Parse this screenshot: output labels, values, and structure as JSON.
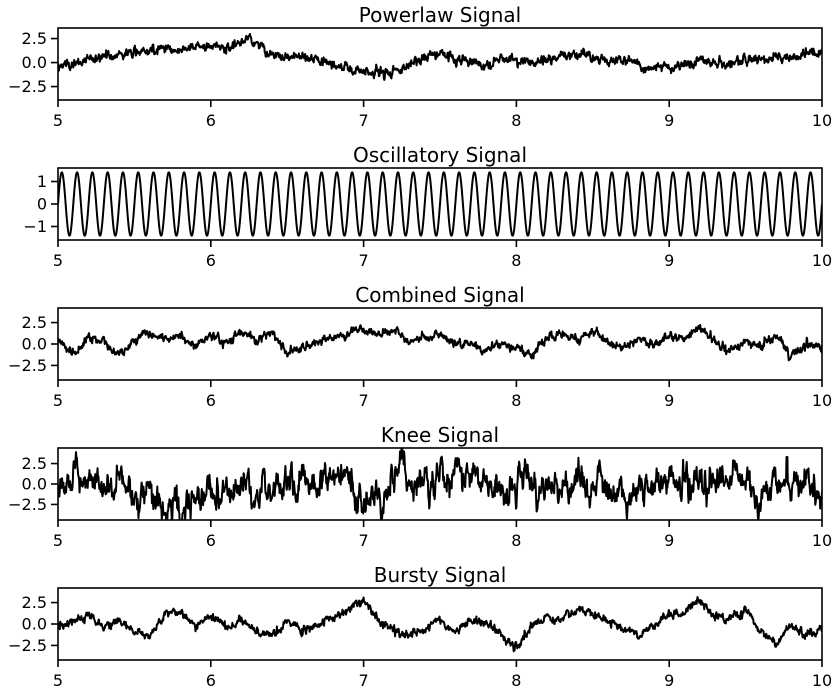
{
  "chart_data": [
    {
      "type": "line",
      "title": "Powerlaw Signal",
      "xlim": [
        5,
        10
      ],
      "ylim": [
        -3.9,
        3.6
      ],
      "x_ticks": [
        5,
        6,
        7,
        8,
        9,
        10
      ],
      "x_tick_labels": [
        "5",
        "6",
        "7",
        "8",
        "9",
        "10"
      ],
      "y_ticks": [
        2.5,
        0.0,
        -2.5
      ],
      "y_tick_labels": [
        "2.5",
        "0.0",
        "−2.5"
      ],
      "series_color": "#000000",
      "series": [
        {
          "x": [
            5.0,
            5.1,
            5.2,
            5.3,
            5.4,
            5.5,
            5.6,
            5.7,
            5.8,
            5.9,
            6.0,
            6.1,
            6.2,
            6.25,
            6.3,
            6.4,
            6.5,
            6.6,
            6.7,
            6.8,
            6.9,
            7.0,
            7.1,
            7.2,
            7.3,
            7.4,
            7.5,
            7.6,
            7.7,
            7.8,
            7.9,
            8.0,
            8.1,
            8.2,
            8.3,
            8.4,
            8.5,
            8.6,
            8.7,
            8.8,
            8.9,
            9.0,
            9.1,
            9.2,
            9.3,
            9.4,
            9.5,
            9.6,
            9.7,
            9.8,
            9.9,
            10.0
          ],
          "y": [
            -0.4,
            -0.2,
            0.3,
            0.6,
            0.9,
            1.0,
            1.4,
            1.6,
            1.2,
            1.8,
            1.7,
            1.5,
            2.2,
            2.7,
            2.0,
            0.8,
            0.6,
            0.5,
            0.2,
            -0.2,
            -0.7,
            -0.9,
            -1.1,
            -0.8,
            -0.3,
            0.6,
            0.9,
            0.5,
            0.2,
            -0.3,
            0.4,
            0.3,
            -0.1,
            0.1,
            0.7,
            0.9,
            0.6,
            0.2,
            0.3,
            -0.2,
            -0.6,
            -0.5,
            -0.3,
            0.1,
            -0.1,
            0.0,
            0.3,
            0.5,
            0.6,
            0.4,
            0.8,
            1.0
          ]
        }
      ]
    },
    {
      "type": "line",
      "title": "Oscillatory Signal",
      "xlim": [
        5,
        10
      ],
      "ylim": [
        -1.6,
        1.6
      ],
      "x_ticks": [
        5,
        6,
        7,
        8,
        9,
        10
      ],
      "x_tick_labels": [
        "5",
        "6",
        "7",
        "8",
        "9",
        "10"
      ],
      "y_ticks": [
        1,
        0,
        -1
      ],
      "y_tick_labels": [
        "1",
        "0",
        "−1"
      ],
      "series_color": "#000000",
      "series": [
        {
          "function": "sine",
          "amplitude": 1.41,
          "frequency_hz": 10,
          "x_range": [
            5,
            10
          ]
        }
      ]
    },
    {
      "type": "line",
      "title": "Combined Signal",
      "xlim": [
        5,
        10
      ],
      "ylim": [
        -4.2,
        4.2
      ],
      "x_ticks": [
        5,
        6,
        7,
        8,
        9,
        10
      ],
      "x_tick_labels": [
        "5",
        "6",
        "7",
        "8",
        "9",
        "10"
      ],
      "y_ticks": [
        2.5,
        0.0,
        -2.5
      ],
      "y_tick_labels": [
        "2.5",
        "0.0",
        "−2.5"
      ],
      "series_color": "#000000",
      "series": [
        {
          "x": [
            5.0,
            5.1,
            5.2,
            5.3,
            5.4,
            5.5,
            5.6,
            5.7,
            5.8,
            5.9,
            6.0,
            6.1,
            6.2,
            6.3,
            6.4,
            6.5,
            6.6,
            6.7,
            6.8,
            6.9,
            7.0,
            7.1,
            7.2,
            7.3,
            7.4,
            7.5,
            7.6,
            7.7,
            7.8,
            7.9,
            8.0,
            8.1,
            8.2,
            8.3,
            8.4,
            8.5,
            8.6,
            8.7,
            8.8,
            8.9,
            9.0,
            9.1,
            9.2,
            9.3,
            9.4,
            9.5,
            9.6,
            9.7,
            9.8,
            9.9,
            10.0
          ],
          "y": [
            0.6,
            -1.2,
            0.8,
            0.3,
            -1.5,
            0.4,
            1.2,
            0.5,
            1.0,
            -0.3,
            1.1,
            0.2,
            1.3,
            0.4,
            1.5,
            -1.0,
            -0.6,
            0.3,
            0.6,
            1.4,
            1.8,
            0.9,
            1.6,
            0.2,
            0.8,
            1.2,
            -0.4,
            0.1,
            -0.8,
            0.2,
            -0.5,
            -1.4,
            0.6,
            1.2,
            0.4,
            1.5,
            0.3,
            -0.5,
            0.8,
            -0.2,
            1.0,
            0.5,
            2.2,
            0.1,
            -0.8,
            0.4,
            -0.2,
            1.0,
            -1.6,
            0.2,
            -0.4
          ]
        }
      ]
    },
    {
      "type": "line",
      "title": "Knee Signal",
      "xlim": [
        5,
        10
      ],
      "ylim": [
        -4.4,
        4.4
      ],
      "x_ticks": [
        5,
        6,
        7,
        8,
        9,
        10
      ],
      "x_tick_labels": [
        "5",
        "6",
        "7",
        "8",
        "9",
        "10"
      ],
      "y_ticks": [
        2.5,
        0.0,
        -2.5
      ],
      "y_tick_labels": [
        "2.5",
        "0.0",
        "−2.5"
      ],
      "series_color": "#000000",
      "series": [
        {
          "noise": "knee",
          "std": 1.2,
          "peak": 3.3,
          "x_range": [
            5,
            10
          ]
        }
      ]
    },
    {
      "type": "line",
      "title": "Bursty Signal",
      "xlim": [
        5,
        10
      ],
      "ylim": [
        -4.2,
        4.2
      ],
      "x_ticks": [
        5,
        6,
        7,
        8,
        9,
        10
      ],
      "x_tick_labels": [
        "5",
        "6",
        "7",
        "8",
        "9",
        "10"
      ],
      "y_ticks": [
        2.5,
        0.0,
        -2.5
      ],
      "y_tick_labels": [
        "2.5",
        "0.0",
        "−2.5"
      ],
      "series_color": "#000000",
      "series": [
        {
          "x": [
            5.0,
            5.1,
            5.2,
            5.3,
            5.4,
            5.5,
            5.6,
            5.7,
            5.8,
            5.9,
            6.0,
            6.1,
            6.2,
            6.3,
            6.4,
            6.5,
            6.6,
            6.7,
            6.8,
            6.9,
            7.0,
            7.1,
            7.2,
            7.3,
            7.4,
            7.5,
            7.6,
            7.7,
            7.8,
            7.9,
            8.0,
            8.1,
            8.2,
            8.3,
            8.4,
            8.5,
            8.6,
            8.7,
            8.8,
            8.9,
            9.0,
            9.1,
            9.2,
            9.3,
            9.4,
            9.5,
            9.6,
            9.7,
            9.8,
            9.9,
            10.0
          ],
          "y": [
            -0.2,
            0.5,
            0.8,
            -0.6,
            0.6,
            -1.0,
            -1.2,
            0.9,
            1.4,
            -0.2,
            1.1,
            -0.3,
            0.6,
            -0.8,
            -1.6,
            0.4,
            -0.9,
            -0.3,
            0.8,
            1.6,
            3.0,
            0.4,
            -0.8,
            -1.5,
            -0.6,
            0.8,
            -1.2,
            0.5,
            0.2,
            -1.0,
            -3.0,
            -0.4,
            0.8,
            0.6,
            1.5,
            1.2,
            0.5,
            -0.6,
            -1.5,
            -0.4,
            1.2,
            1.5,
            2.8,
            1.0,
            0.7,
            1.8,
            -1.0,
            -2.3,
            -0.2,
            -1.4,
            -0.8
          ]
        }
      ]
    }
  ]
}
